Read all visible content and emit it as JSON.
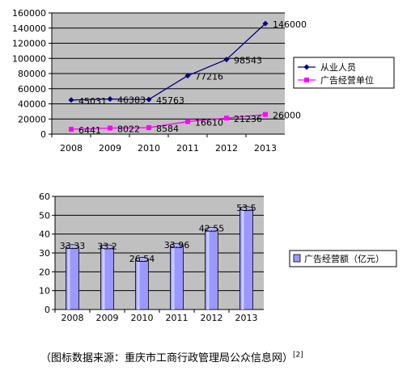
{
  "chart_data": [
    {
      "type": "line",
      "categories": [
        "2008",
        "2009",
        "2010",
        "2011",
        "2012",
        "2013"
      ],
      "ylim": [
        0,
        160000
      ],
      "yticks": [
        0,
        20000,
        40000,
        60000,
        80000,
        100000,
        120000,
        140000,
        160000
      ],
      "grid": true,
      "legend": "right",
      "series": [
        {
          "name": "从业人员",
          "values": [
            45031,
            46383,
            45763,
            77216,
            98543,
            146000
          ],
          "labels": [
            "45031",
            "46383",
            "45763",
            "77216",
            "98543",
            "146000"
          ],
          "color": "#000080",
          "marker": "diamond"
        },
        {
          "name": "广告经营单位",
          "values": [
            6441,
            8022,
            8584,
            16610,
            21236,
            26000
          ],
          "labels": [
            "6441",
            "8022",
            "8584",
            "16610",
            "21236",
            "26000"
          ],
          "color": "#ff00ff",
          "marker": "square"
        }
      ]
    },
    {
      "type": "bar",
      "categories": [
        "2008",
        "2009",
        "2010",
        "2011",
        "2012",
        "2013"
      ],
      "ylim": [
        0,
        60
      ],
      "yticks": [
        0,
        10,
        20,
        30,
        40,
        50,
        60
      ],
      "grid": true,
      "legend": "right",
      "series": [
        {
          "name": "广告经营额（亿元）",
          "values": [
            33.33,
            33.2,
            26.54,
            33.96,
            42.55,
            53.5
          ],
          "labels": [
            "33.33",
            "33.2",
            "26.54",
            "33.96",
            "42.55",
            "53.5"
          ],
          "color": "#9999ff"
        }
      ]
    }
  ],
  "caption": {
    "text": "（图标数据来源：重庆市工商行政管理局公众信息网）",
    "ref": "[2]"
  }
}
